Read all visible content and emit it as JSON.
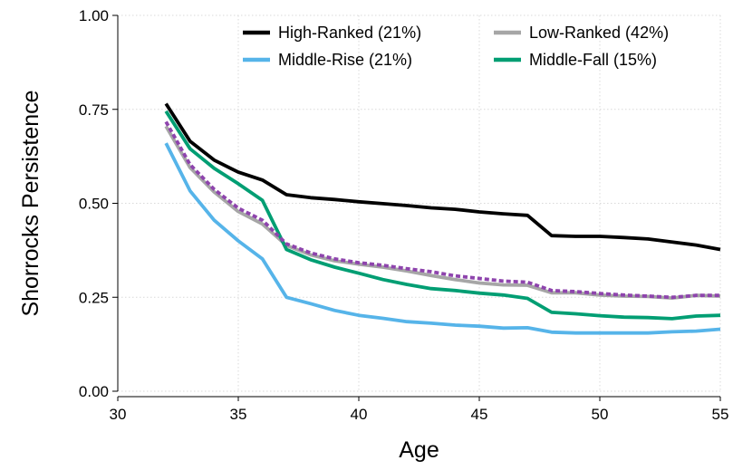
{
  "chart_data": {
    "type": "line",
    "xlabel": "Age",
    "ylabel": "Shorrocks Persistence",
    "xlim": [
      30,
      55
    ],
    "ylim": [
      0,
      1
    ],
    "xticks": [
      30,
      35,
      40,
      45,
      50,
      55
    ],
    "yticks": [
      "0.00",
      "0.25",
      "0.50",
      "0.75",
      "1.00"
    ],
    "grid": true,
    "legend_position": "top-right",
    "x": [
      32,
      33,
      34,
      35,
      36,
      37,
      38,
      39,
      40,
      41,
      42,
      43,
      44,
      45,
      46,
      47,
      48,
      49,
      50,
      51,
      52,
      53,
      54,
      55
    ],
    "series": [
      {
        "name": "High-Ranked (21%)",
        "color": "#000000",
        "style": "solid",
        "values": [
          0.765,
          0.665,
          0.615,
          0.583,
          0.562,
          0.523,
          0.515,
          0.51,
          0.504,
          0.499,
          0.494,
          0.488,
          0.484,
          0.477,
          0.472,
          0.468,
          0.414,
          0.412,
          0.412,
          0.409,
          0.405,
          0.397,
          0.389,
          0.377
        ]
      },
      {
        "name": "Low-Ranked (42%)",
        "color": "#a6a6a6",
        "style": "solid",
        "values": [
          0.705,
          0.595,
          0.53,
          0.478,
          0.445,
          0.388,
          0.363,
          0.347,
          0.338,
          0.33,
          0.32,
          0.308,
          0.297,
          0.288,
          0.283,
          0.282,
          0.262,
          0.262,
          0.256,
          0.253,
          0.252,
          0.248,
          0.255,
          0.253
        ]
      },
      {
        "name": "Middle-Rise (21%)",
        "color": "#56b4e9",
        "style": "solid",
        "values": [
          0.66,
          0.533,
          0.455,
          0.4,
          0.352,
          0.25,
          0.233,
          0.215,
          0.202,
          0.194,
          0.185,
          0.181,
          0.176,
          0.173,
          0.168,
          0.169,
          0.157,
          0.155,
          0.155,
          0.155,
          0.155,
          0.158,
          0.16,
          0.165
        ]
      },
      {
        "name": "Middle-Fall (15%)",
        "color": "#009e73",
        "style": "solid",
        "values": [
          0.745,
          0.645,
          0.593,
          0.552,
          0.508,
          0.377,
          0.35,
          0.33,
          0.314,
          0.297,
          0.284,
          0.273,
          0.268,
          0.261,
          0.256,
          0.247,
          0.21,
          0.206,
          0.201,
          0.197,
          0.196,
          0.193,
          0.2,
          0.202
        ]
      },
      {
        "color": "#8e44ad",
        "style": "dashed",
        "values": [
          0.717,
          0.603,
          0.537,
          0.487,
          0.455,
          0.392,
          0.368,
          0.352,
          0.342,
          0.335,
          0.326,
          0.318,
          0.307,
          0.3,
          0.293,
          0.29,
          0.268,
          0.265,
          0.26,
          0.256,
          0.253,
          0.25,
          0.255,
          0.255
        ]
      }
    ]
  }
}
